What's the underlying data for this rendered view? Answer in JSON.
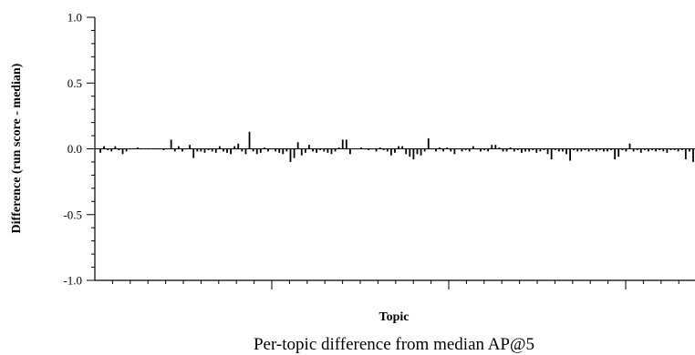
{
  "chart_data": {
    "type": "bar",
    "title": "",
    "caption": "Per-topic difference from median AP@5",
    "xlabel": "Topic",
    "ylabel": "Difference (run score - median)",
    "ylim": [
      -1.0,
      1.0
    ],
    "yticks": [
      "1.0",
      "0.5",
      "0.0",
      "-0.5",
      "-1.0"
    ],
    "ytick_values": [
      1.0,
      0.5,
      0.0,
      -0.5,
      -1.0
    ],
    "grid": false,
    "legend": "none",
    "bar_color": "#000000",
    "series": [
      {
        "values": [
          -0.03,
          0.02,
          -0.01,
          -0.02,
          0.02,
          -0.01,
          -0.04,
          -0.02,
          0,
          0,
          0.01,
          0,
          0,
          0,
          0,
          0,
          0,
          -0.01,
          0,
          0.07,
          -0.02,
          0.02,
          -0.02,
          0,
          0.03,
          -0.07,
          -0.02,
          -0.02,
          -0.03,
          -0.01,
          -0.02,
          -0.03,
          0.02,
          -0.02,
          -0.03,
          -0.04,
          0.02,
          0.04,
          -0.02,
          -0.04,
          0.13,
          -0.02,
          -0.04,
          -0.03,
          0.01,
          -0.02,
          0,
          -0.02,
          -0.03,
          -0.04,
          -0.02,
          -0.1,
          -0.07,
          0.05,
          -0.05,
          -0.03,
          0.03,
          -0.02,
          -0.03,
          -0.01,
          -0.02,
          -0.03,
          -0.04,
          -0.02,
          0.01,
          0.07,
          0.07,
          -0.04,
          0,
          0,
          0.01,
          0,
          -0.01,
          0,
          -0.02,
          0.01,
          -0.01,
          -0.02,
          -0.05,
          -0.03,
          0.02,
          0.02,
          -0.04,
          -0.06,
          -0.08,
          -0.04,
          -0.05,
          -0.02,
          0.08,
          0,
          -0.02,
          0.01,
          -0.02,
          0.01,
          -0.02,
          -0.04,
          0,
          -0.02,
          -0.01,
          -0.02,
          0.02,
          0,
          -0.02,
          -0.01,
          -0.02,
          0.03,
          0.03,
          0.01,
          -0.02,
          -0.02,
          0.01,
          -0.02,
          -0.01,
          -0.03,
          -0.02,
          -0.02,
          -0.01,
          -0.03,
          -0.02,
          -0.01,
          -0.04,
          -0.08,
          -0.01,
          -0.02,
          -0.02,
          -0.04,
          -0.09,
          -0.01,
          -0.02,
          -0.02,
          -0.01,
          -0.02,
          -0.01,
          -0.02,
          -0.01,
          -0.02,
          -0.02,
          -0.01,
          -0.08,
          -0.06,
          -0.01,
          -0.02,
          0.04,
          -0.02,
          -0.01,
          -0.03,
          -0.01,
          -0.02,
          -0.01,
          -0.02,
          -0.01,
          -0.02,
          -0.03,
          -0.01,
          -0.01,
          -0.02,
          -0.01,
          -0.08,
          -0.02,
          -0.1
        ]
      }
    ]
  }
}
